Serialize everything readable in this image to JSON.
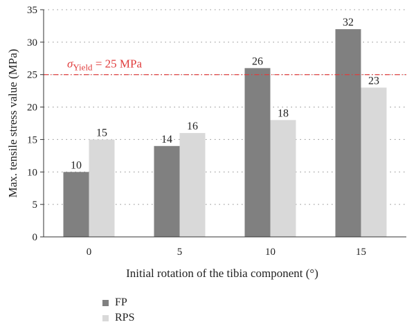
{
  "chart_data": {
    "type": "bar",
    "categories": [
      "0",
      "5",
      "10",
      "15"
    ],
    "series": [
      {
        "name": "FP",
        "values": [
          10,
          14,
          26,
          32
        ],
        "color": "#808080"
      },
      {
        "name": "RPS",
        "values": [
          15,
          16,
          18,
          23
        ],
        "color": "#d9d9d9"
      }
    ],
    "data_labels": true,
    "xlabel": "Initial rotation of the tibia component (°)",
    "ylabel": "Max. tensile stress value (MPa)",
    "ylim": [
      0,
      35
    ],
    "yticks": [
      0,
      5,
      10,
      15,
      20,
      25,
      30,
      35
    ],
    "grid": "horizontal dotted",
    "legend_position": "bottom-left",
    "reference_line": {
      "value": 25,
      "symbol": "σ",
      "subscript": "Yield",
      "text": " = 25 MPa",
      "color": "#e03c3c"
    }
  }
}
